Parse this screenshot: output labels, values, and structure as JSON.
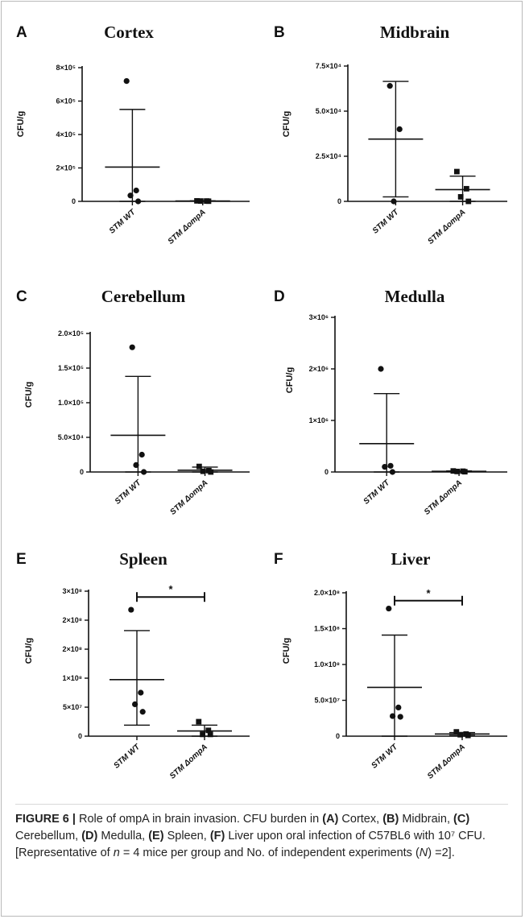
{
  "chart_data": [
    {
      "id": "A",
      "type": "scatter",
      "title": "Cortex",
      "ylabel": "CFU/g",
      "categories": [
        "STM WT",
        "STM ΔompA"
      ],
      "yticks": [
        {
          "v": 0,
          "label": "0"
        },
        {
          "v": 200000,
          "label": "2×10⁵"
        },
        {
          "v": 400000,
          "label": "4×10⁵"
        },
        {
          "v": 600000,
          "label": "6×10⁵"
        },
        {
          "v": 800000,
          "label": "8×10⁵"
        }
      ],
      "ylim": [
        0,
        800000
      ],
      "series": [
        {
          "category": "STM WT",
          "marker": "circle",
          "points": [
            720000,
            65000,
            35000,
            0
          ],
          "mean": 205000,
          "sd_upper": 550000,
          "sd_lower": 0
        },
        {
          "category": "STM ΔompA",
          "marker": "square",
          "points": [
            3000,
            2000,
            2000,
            1000
          ],
          "mean": 2000,
          "sd_upper": 3000,
          "sd_lower": 1000
        }
      ],
      "significance": null
    },
    {
      "id": "B",
      "type": "scatter",
      "title": "Midbrain",
      "ylabel": "CFU/g",
      "categories": [
        "STM WT",
        "STM ΔompA"
      ],
      "yticks": [
        {
          "v": 0,
          "label": "0"
        },
        {
          "v": 25000,
          "label": "2.5×10⁴"
        },
        {
          "v": 50000,
          "label": "5.0×10⁴"
        },
        {
          "v": 75000,
          "label": "7.5×10⁴"
        }
      ],
      "ylim": [
        0,
        75000
      ],
      "series": [
        {
          "category": "STM WT",
          "marker": "circle",
          "points": [
            64000,
            40000,
            0
          ],
          "mean": 34500,
          "sd_upper": 66500,
          "sd_lower": 2500
        },
        {
          "category": "STM ΔompA",
          "marker": "square",
          "points": [
            16500,
            7000,
            2500,
            0
          ],
          "mean": 6500,
          "sd_upper": 14000,
          "sd_lower": 0
        }
      ],
      "significance": null
    },
    {
      "id": "C",
      "type": "scatter",
      "title": "Cerebellum",
      "ylabel": "CFU/g",
      "categories": [
        "STM WT",
        "STM ΔompA"
      ],
      "yticks": [
        {
          "v": 0,
          "label": "0"
        },
        {
          "v": 50000,
          "label": "5.0×10⁴"
        },
        {
          "v": 100000,
          "label": "1.0×10⁵"
        },
        {
          "v": 150000,
          "label": "1.5×10⁵"
        },
        {
          "v": 200000,
          "label": "2.0×10⁵"
        }
      ],
      "ylim": [
        0,
        200000
      ],
      "series": [
        {
          "category": "STM WT",
          "marker": "circle",
          "points": [
            180000,
            25000,
            10000,
            0
          ],
          "mean": 53000,
          "sd_upper": 138000,
          "sd_lower": 0
        },
        {
          "category": "STM ΔompA",
          "marker": "square",
          "points": [
            8000,
            2000,
            1000,
            0
          ],
          "mean": 2500,
          "sd_upper": 7000,
          "sd_lower": 0
        }
      ],
      "significance": null
    },
    {
      "id": "D",
      "type": "scatter",
      "title": "Medulla",
      "ylabel": "CFU/g",
      "categories": [
        "STM WT",
        "STM ΔompA"
      ],
      "yticks": [
        {
          "v": 0,
          "label": "0"
        },
        {
          "v": 1000000,
          "label": "1×10⁶"
        },
        {
          "v": 2000000,
          "label": "2×10⁶"
        },
        {
          "v": 3000000,
          "label": "3×10⁶"
        }
      ],
      "ylim": [
        0,
        3000000
      ],
      "series": [
        {
          "category": "STM WT",
          "marker": "circle",
          "points": [
            2000000,
            120000,
            100000,
            0
          ],
          "mean": 550000,
          "sd_upper": 1520000,
          "sd_lower": 0
        },
        {
          "category": "STM ΔompA",
          "marker": "square",
          "points": [
            20000,
            15000,
            10000,
            5000
          ],
          "mean": 12000,
          "sd_upper": 20000,
          "sd_lower": 5000
        }
      ],
      "significance": null
    },
    {
      "id": "E",
      "type": "scatter",
      "title": "Spleen",
      "ylabel": "CFU/g",
      "categories": [
        "STM WT",
        "STM ΔompA"
      ],
      "yticks": [
        {
          "v": 0,
          "label": "0"
        },
        {
          "v": 50000000,
          "label": "5×10⁷"
        },
        {
          "v": 100000000,
          "label": "1×10⁸"
        },
        {
          "v": 150000000,
          "label": "2×10⁸"
        },
        {
          "v": 200000000,
          "label": "2×10⁸"
        },
        {
          "v": 250000000,
          "label": "3×10⁸"
        }
      ],
      "ylim": [
        0,
        250000000
      ],
      "series": [
        {
          "category": "STM WT",
          "marker": "circle",
          "points": [
            218000000,
            75000000,
            55000000,
            42000000
          ],
          "mean": 97500000,
          "sd_upper": 182000000,
          "sd_lower": 19000000
        },
        {
          "category": "STM ΔompA",
          "marker": "square",
          "points": [
            25000000,
            10000000,
            3000000,
            3000000
          ],
          "mean": 9000000,
          "sd_upper": 19000000,
          "sd_lower": 0
        }
      ],
      "significance": {
        "label": "*",
        "bracket_y": 240000000
      }
    },
    {
      "id": "F",
      "type": "scatter",
      "title": "Liver",
      "ylabel": "CFU/g",
      "categories": [
        "STM WT",
        "STM ΔompA"
      ],
      "yticks": [
        {
          "v": 0,
          "label": "0"
        },
        {
          "v": 50000000,
          "label": "5.0×10⁷"
        },
        {
          "v": 100000000,
          "label": "1.0×10⁸"
        },
        {
          "v": 150000000,
          "label": "1.5×10⁸"
        },
        {
          "v": 200000000,
          "label": "2.0×10⁸"
        }
      ],
      "ylim": [
        0,
        200000000
      ],
      "series": [
        {
          "category": "STM WT",
          "marker": "circle",
          "points": [
            178000000,
            40000000,
            28000000,
            27000000
          ],
          "mean": 68000000,
          "sd_upper": 141000000,
          "sd_lower": 0
        },
        {
          "category": "STM ΔompA",
          "marker": "square",
          "points": [
            6000000,
            3000000,
            2000000,
            1000000
          ],
          "mean": 3000000,
          "sd_upper": 5000000,
          "sd_lower": 1000000
        }
      ],
      "significance": {
        "label": "*",
        "bracket_y": 189000000
      }
    }
  ],
  "caption": {
    "figure_label": "FIGURE 6 |",
    "text_parts": [
      {
        "t": " Role of ompA in brain invasion. CFU burden in ",
        "b": false
      },
      {
        "t": "(A)",
        "b": true
      },
      {
        "t": " Cortex, ",
        "b": false
      },
      {
        "t": "(B)",
        "b": true
      },
      {
        "t": " Midbrain, ",
        "b": false
      },
      {
        "t": "(C)",
        "b": true
      },
      {
        "t": " Cerebellum, ",
        "b": false
      },
      {
        "t": "(D)",
        "b": true
      },
      {
        "t": " Medulla, ",
        "b": false
      },
      {
        "t": "(E)",
        "b": true
      },
      {
        "t": " Spleen, ",
        "b": false
      },
      {
        "t": "(F)",
        "b": true
      },
      {
        "t": " Liver upon oral infection of C57BL6 with 10⁷ CFU. [Representative of ",
        "b": false
      },
      {
        "t": "n",
        "i": true
      },
      {
        "t": " = 4 mice per group and No. of independent experiments (",
        "b": false
      },
      {
        "t": "N",
        "i": true
      },
      {
        "t": ") =2].",
        "b": false
      }
    ]
  }
}
